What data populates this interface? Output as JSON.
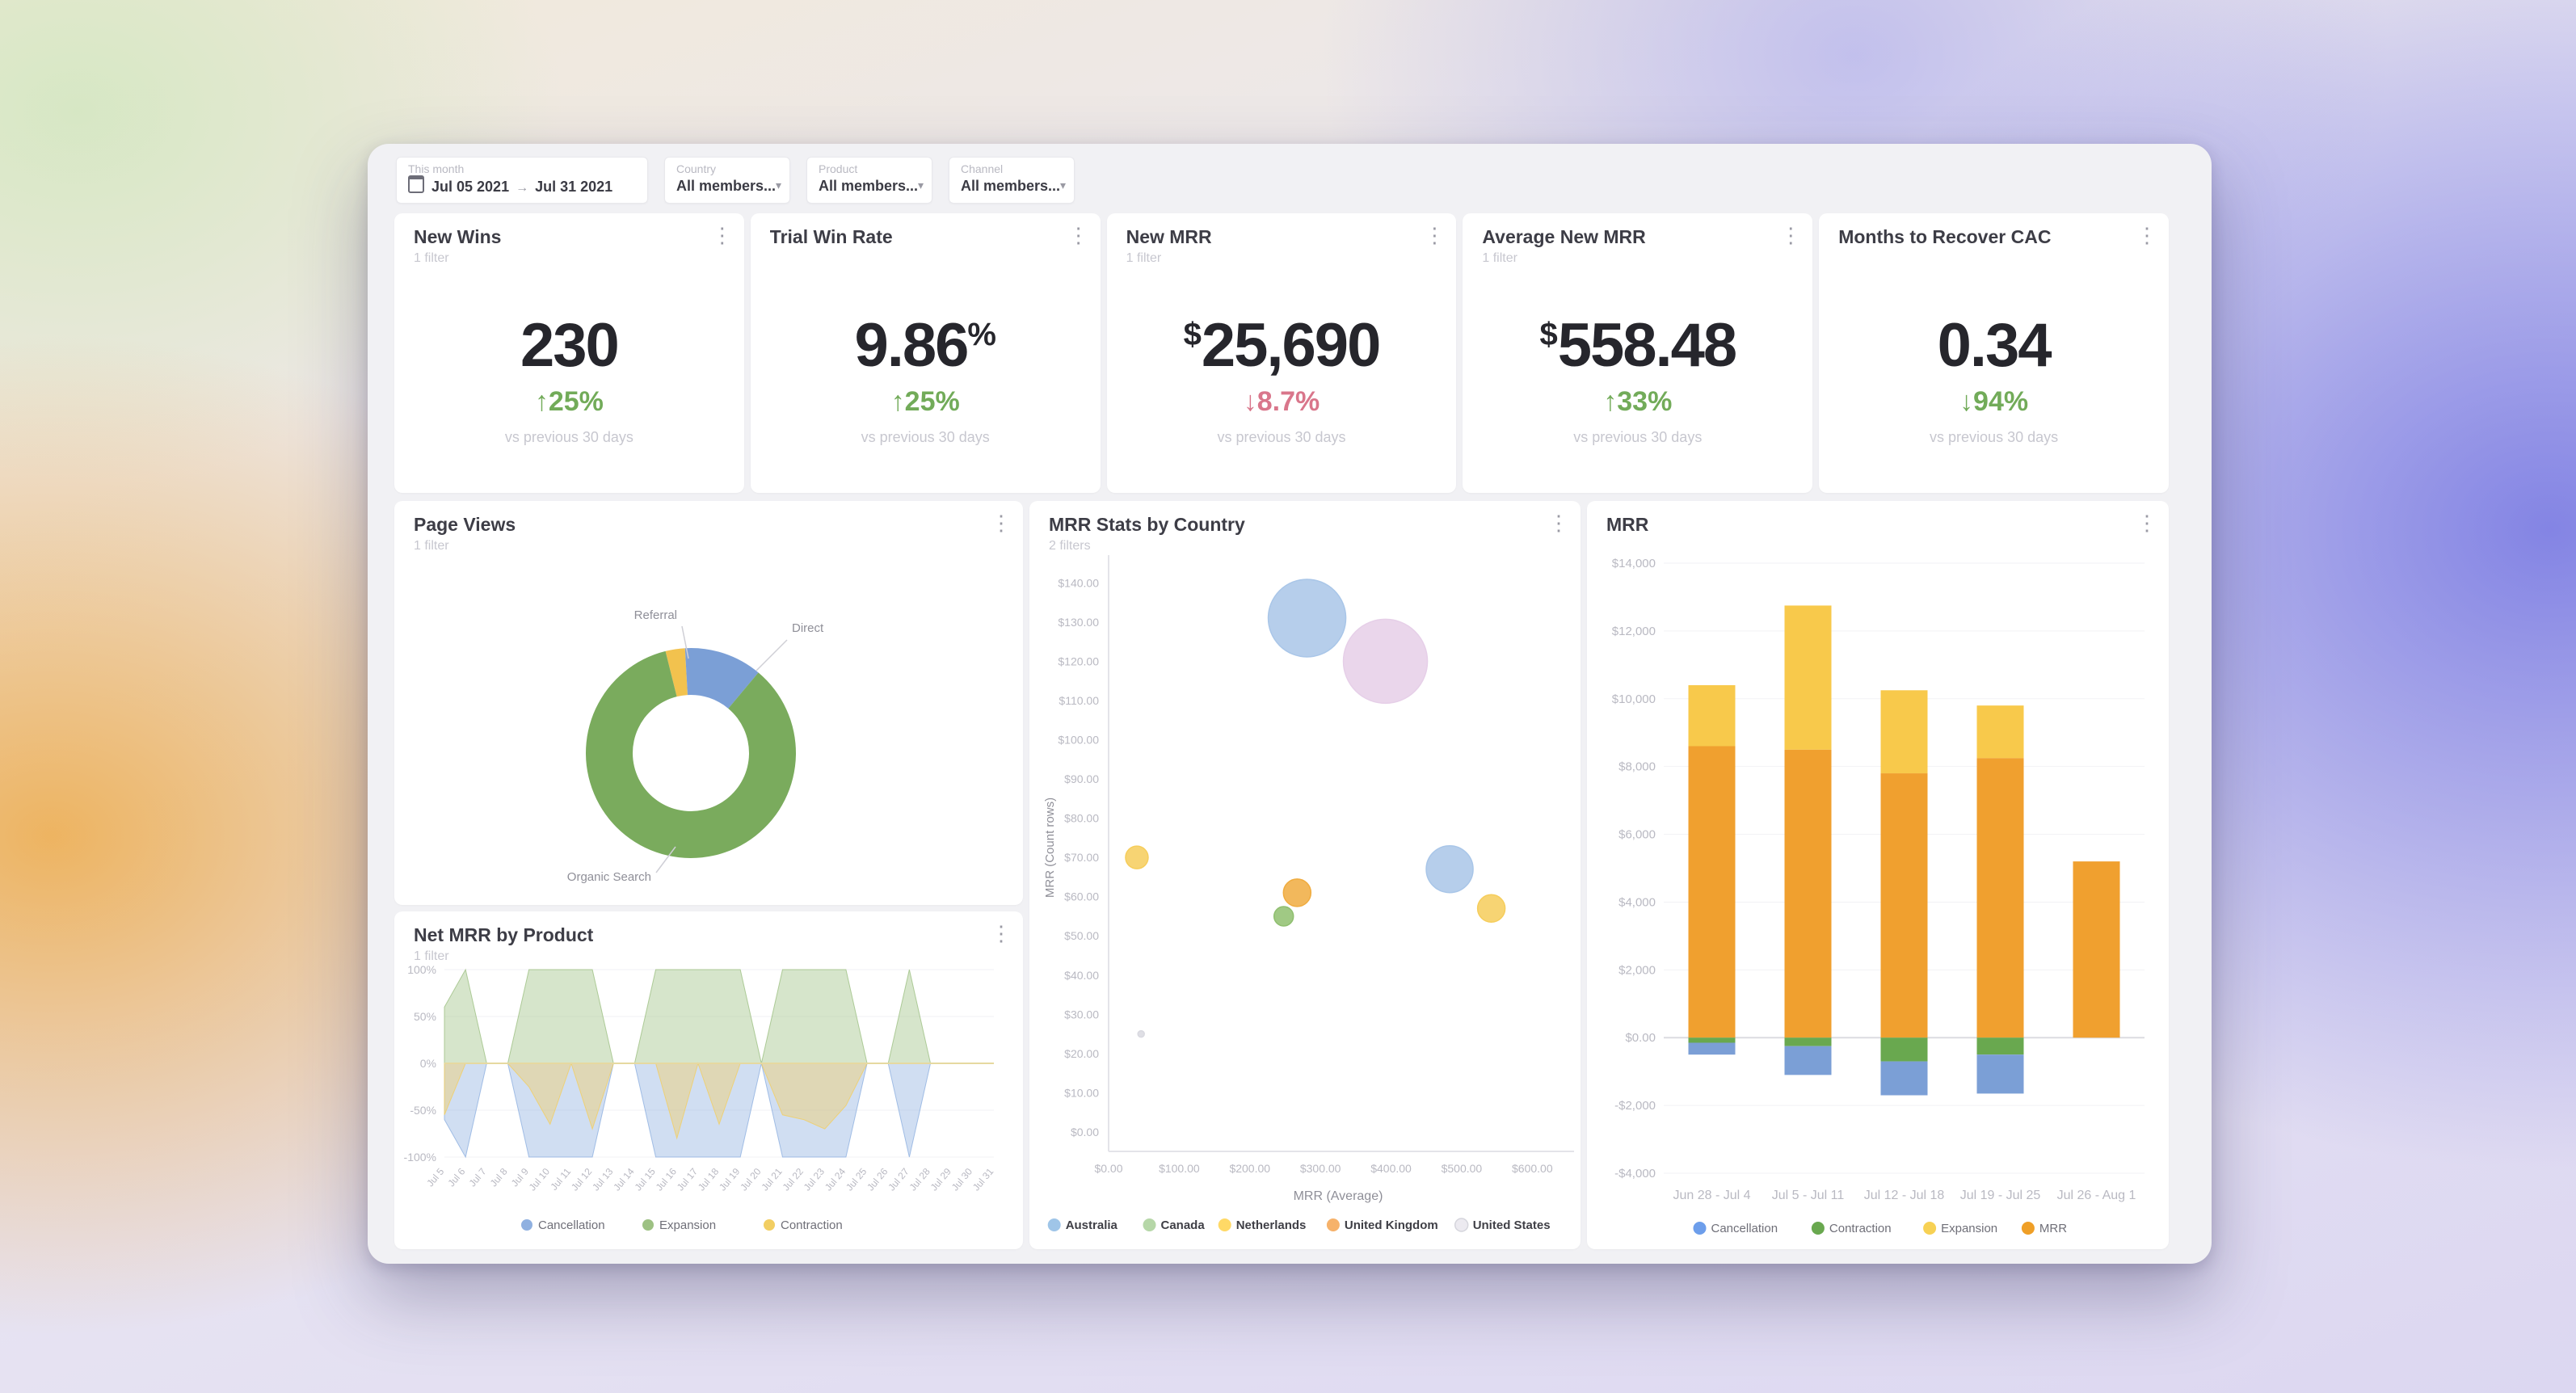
{
  "filters": {
    "date_range": {
      "label": "This month",
      "start": "Jul 05 2021",
      "arrow": "→",
      "end": "Jul 31 2021"
    },
    "dropdowns": [
      {
        "label": "Country",
        "value": "All members...",
        "caret": "▾"
      },
      {
        "label": "Product",
        "value": "All members...",
        "caret": "▾"
      },
      {
        "label": "Channel",
        "value": "All members...",
        "caret": "▾"
      }
    ]
  },
  "icons": {
    "kebab": "⋮"
  },
  "kpi_cards": [
    {
      "title": "New Wins",
      "subtitle": "1 filter",
      "prefix": "",
      "value": "230",
      "suffix": "",
      "delta_arrow": "↑",
      "delta": "25%",
      "delta_dir": "up",
      "vs": "vs previous 30 days"
    },
    {
      "title": "Trial Win Rate",
      "subtitle": "",
      "prefix": "",
      "value": "9.86",
      "suffix": "%",
      "delta_arrow": "↑",
      "delta": "25%",
      "delta_dir": "up",
      "vs": "vs previous 30 days"
    },
    {
      "title": "New MRR",
      "subtitle": "1 filter",
      "prefix": "$",
      "value": "25,690",
      "suffix": "",
      "delta_arrow": "↓",
      "delta": "8.7%",
      "delta_dir": "down",
      "vs": "vs previous 30 days"
    },
    {
      "title": "Average New MRR",
      "subtitle": "1 filter",
      "prefix": "$",
      "value": "558.48",
      "suffix": "",
      "delta_arrow": "↑",
      "delta": "33%",
      "delta_dir": "up",
      "vs": "vs previous 30 days"
    },
    {
      "title": "Months to Recover CAC",
      "subtitle": "",
      "prefix": "",
      "value": "0.34",
      "suffix": "",
      "delta_arrow": "↓",
      "delta": "94%",
      "delta_dir": "down-green",
      "vs": "vs previous 30 days"
    }
  ],
  "panels": {
    "page_views": {
      "title": "Page Views",
      "subtitle": "1 filter"
    },
    "net_mrr": {
      "title": "Net MRR by Product",
      "subtitle": "1 filter"
    },
    "bubble": {
      "title": "MRR Stats by Country",
      "subtitle": "2 filters"
    },
    "bars": {
      "title": "MRR",
      "subtitle": ""
    }
  },
  "chart_data": [
    {
      "id": "page_views",
      "type": "pie",
      "title": "Page Views",
      "donut": true,
      "start_angle_deg": -14,
      "slices": [
        {
          "label": "Referral",
          "value": 3,
          "color": "#f2c24e"
        },
        {
          "label": "Direct",
          "value": 12,
          "color": "#7b9fd6"
        },
        {
          "label": "Organic Search",
          "value": 85,
          "color": "#7aab5d"
        }
      ],
      "legend_position": "callout-labels"
    },
    {
      "id": "net_mrr",
      "type": "area",
      "title": "Net MRR by Product",
      "x": [
        "Jul 5",
        "Jul 6",
        "Jul 7",
        "Jul 8",
        "Jul 9",
        "Jul 10",
        "Jul 11",
        "Jul 12",
        "Jul 13",
        "Jul 14",
        "Jul 15",
        "Jul 16",
        "Jul 17",
        "Jul 18",
        "Jul 19",
        "Jul 20",
        "Jul 21",
        "Jul 22",
        "Jul 23",
        "Jul 24",
        "Jul 25",
        "Jul 26",
        "Jul 27",
        "Jul 28",
        "Jul 29",
        "Jul 30",
        "Jul 31"
      ],
      "ylim": [
        -100,
        100
      ],
      "yticks": [
        "100%",
        "50%",
        "0%",
        "-50%",
        "-100%"
      ],
      "series": [
        {
          "name": "Expansion",
          "color": "#9dc183",
          "values": [
            60,
            100,
            0,
            0,
            100,
            100,
            100,
            100,
            0,
            0,
            100,
            100,
            100,
            100,
            100,
            0,
            100,
            100,
            100,
            100,
            0,
            0,
            100,
            0,
            0,
            0,
            0
          ]
        },
        {
          "name": "Cancellation",
          "color": "#8fb0e0",
          "values": [
            -60,
            -100,
            0,
            0,
            -100,
            -100,
            -100,
            -100,
            0,
            0,
            -100,
            -100,
            -100,
            -100,
            -100,
            0,
            -100,
            -100,
            -100,
            -100,
            0,
            0,
            -100,
            0,
            0,
            0,
            0
          ]
        },
        {
          "name": "Contraction",
          "color": "#f2ce62",
          "values": [
            -55,
            0,
            0,
            0,
            -25,
            -65,
            0,
            -70,
            0,
            0,
            0,
            -80,
            0,
            -65,
            0,
            0,
            -55,
            -60,
            -70,
            -45,
            0,
            0,
            0,
            0,
            0,
            0,
            0
          ]
        }
      ],
      "legend": [
        {
          "label": "Cancellation",
          "color": "#8fb0e0"
        },
        {
          "label": "Expansion",
          "color": "#9dc183"
        },
        {
          "label": "Contraction",
          "color": "#f2ce62"
        }
      ],
      "legend_position": "bottom"
    },
    {
      "id": "bubble",
      "type": "scatter",
      "title": "MRR Stats by Country",
      "xlabel": "MRR (Average)",
      "ylabel": "MRR (Count rows)",
      "xlim": [
        0,
        650
      ],
      "ylim": [
        0,
        145
      ],
      "xticks": [
        "$0.00",
        "$100.00",
        "$200.00",
        "$300.00",
        "$400.00",
        "$500.00",
        "$600.00"
      ],
      "yticks": [
        "$140.00",
        "$130.00",
        "$120.00",
        "$110.00",
        "$100.00",
        "$90.00",
        "$80.00",
        "$70.00",
        "$60.00",
        "$50.00",
        "$40.00",
        "$30.00",
        "$20.00",
        "$10.00",
        "$0.00"
      ],
      "bubbles": [
        {
          "country": "Australia",
          "x": 281,
          "y": 131,
          "r": 48,
          "color": "#a9c6e8"
        },
        {
          "country": "United States",
          "x": 392,
          "y": 120,
          "r": 52,
          "color": "#e6cfe8"
        },
        {
          "country": "Netherlands",
          "x": 40,
          "y": 70,
          "r": 14,
          "color": "#f6cd5b"
        },
        {
          "country": "United States",
          "x": 46,
          "y": 25,
          "r": 4,
          "color": "#d9d9e0"
        },
        {
          "country": "United Kingdom",
          "x": 267,
          "y": 61,
          "r": 17,
          "color": "#f0ac3f"
        },
        {
          "country": "Canada",
          "x": 248,
          "y": 55,
          "r": 12,
          "color": "#8fbf6f"
        },
        {
          "country": "Australia",
          "x": 483,
          "y": 67,
          "r": 29,
          "color": "#a9c6e8"
        },
        {
          "country": "Netherlands",
          "x": 542,
          "y": 57,
          "r": 17,
          "color": "#f6cd5b"
        }
      ],
      "legend": [
        {
          "label": "Australia",
          "color": "#9fc5e8"
        },
        {
          "label": "Canada",
          "color": "#b6d7a8"
        },
        {
          "label": "Netherlands",
          "color": "#ffd966"
        },
        {
          "label": "United Kingdom",
          "color": "#f6b26b"
        },
        {
          "label": "United States",
          "color": "#eceaf0"
        }
      ],
      "legend_position": "bottom"
    },
    {
      "id": "bars",
      "type": "bar",
      "title": "MRR",
      "categories": [
        "Jun 28 - Jul 4",
        "Jul 5 - Jul 11",
        "Jul 12 - Jul 18",
        "Jul 19 - Jul 25",
        "Jul 26 - Aug 1"
      ],
      "ylim": [
        -4000,
        14000
      ],
      "yticks": [
        "$14,000",
        "$12,000",
        "$10,000",
        "$8,000",
        "$6,000",
        "$4,000",
        "$2,000",
        "$0.00",
        "-$2,000",
        "-$4,000"
      ],
      "series": [
        {
          "name": "MRR",
          "color": "#f0a02f",
          "values": [
            8600,
            8500,
            7800,
            8250,
            5200
          ]
        },
        {
          "name": "Expansion",
          "color": "#f8c94b",
          "values": [
            1800,
            4250,
            2450,
            1550,
            0
          ]
        },
        {
          "name": "Contraction",
          "color": "#69a84f",
          "values": [
            -150,
            -250,
            -700,
            -500,
            0
          ]
        },
        {
          "name": "Cancellation",
          "color": "#7b9fd6",
          "values": [
            -350,
            -850,
            -1000,
            -1150,
            0
          ]
        }
      ],
      "legend": [
        {
          "label": "Cancellation",
          "color": "#6d9eeb"
        },
        {
          "label": "Contraction",
          "color": "#69a84f"
        },
        {
          "label": "Expansion",
          "color": "#f7d154"
        },
        {
          "label": "MRR",
          "color": "#ef9f27"
        }
      ],
      "legend_position": "bottom"
    }
  ]
}
